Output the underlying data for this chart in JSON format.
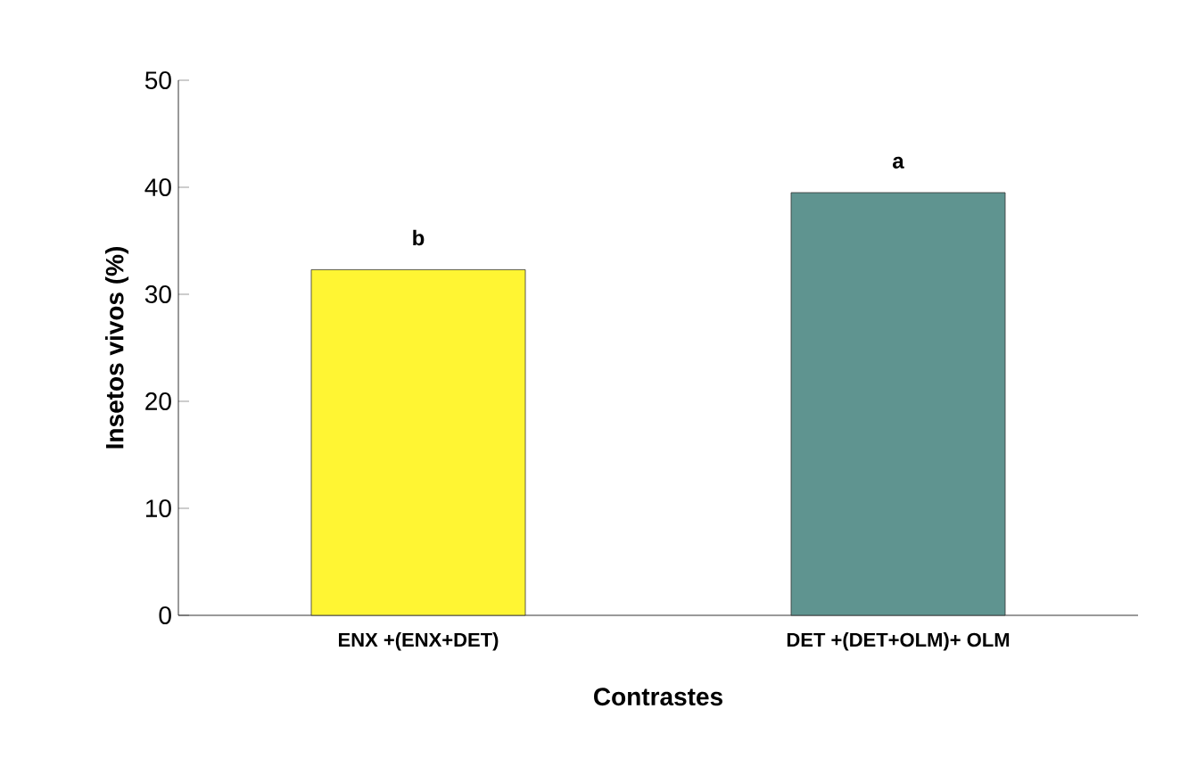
{
  "chart_data": {
    "type": "bar",
    "categories": [
      "ENX +(ENX+DET)",
      "DET +(DET+OLM)+ OLM"
    ],
    "values": [
      32.3,
      39.5
    ],
    "colors": [
      "#fff533",
      "#5f9490"
    ],
    "ylim": [
      0,
      50
    ],
    "yticks": [
      0,
      10,
      20,
      30,
      40,
      50
    ],
    "xlabel": "Contrastes",
    "ylabel": "Insetos vivos (%)",
    "annotations": [
      {
        "text": "b",
        "x": "ENX +(ENX+DET)",
        "y": 32.3
      },
      {
        "text": "a",
        "x": "DET +(DET+OLM)+ OLM",
        "y": 39.5
      }
    ]
  }
}
